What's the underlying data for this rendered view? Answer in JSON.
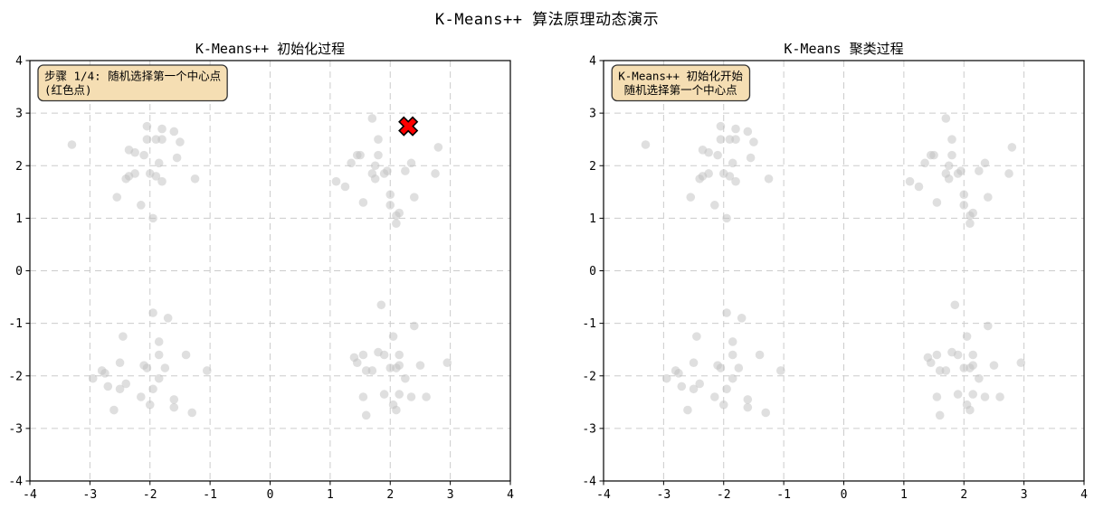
{
  "figure": {
    "title": "K-Means++ 算法原理动态演示",
    "background": "#ffffff"
  },
  "colors": {
    "sample_point": "#bfbfbf",
    "centroid_red": "#ff0000",
    "centroid_edge": "#000000",
    "annotation_bg": "#f5deb3",
    "annotation_border": "#333333",
    "grid": "#cccccc",
    "axis": "#000000",
    "text": "#000000"
  },
  "dataset": {
    "points": [
      [
        -3.3,
        2.4
      ],
      [
        -2.05,
        2.75
      ],
      [
        -1.8,
        2.7
      ],
      [
        -1.6,
        2.65
      ],
      [
        -2.05,
        2.5
      ],
      [
        -1.9,
        2.5
      ],
      [
        -1.8,
        2.5
      ],
      [
        -1.5,
        2.45
      ],
      [
        -2.35,
        2.3
      ],
      [
        -2.25,
        2.25
      ],
      [
        -2.1,
        2.2
      ],
      [
        -1.55,
        2.15
      ],
      [
        -1.85,
        2.05
      ],
      [
        -2.25,
        1.85
      ],
      [
        -2.0,
        1.85
      ],
      [
        -2.35,
        1.8
      ],
      [
        -1.9,
        1.8
      ],
      [
        -2.4,
        1.75
      ],
      [
        -1.8,
        1.7
      ],
      [
        -1.25,
        1.75
      ],
      [
        -2.55,
        1.4
      ],
      [
        -2.15,
        1.25
      ],
      [
        -1.95,
        1.0
      ],
      [
        1.7,
        2.9
      ],
      [
        1.8,
        2.5
      ],
      [
        2.8,
        2.35
      ],
      [
        1.45,
        2.2
      ],
      [
        1.5,
        2.2
      ],
      [
        1.8,
        2.2
      ],
      [
        1.35,
        2.05
      ],
      [
        1.75,
        2.0
      ],
      [
        2.35,
        2.05
      ],
      [
        1.95,
        1.9
      ],
      [
        1.9,
        1.85
      ],
      [
        2.25,
        1.9
      ],
      [
        2.75,
        1.85
      ],
      [
        1.7,
        1.85
      ],
      [
        1.75,
        1.75
      ],
      [
        1.1,
        1.7
      ],
      [
        1.25,
        1.6
      ],
      [
        2.0,
        1.45
      ],
      [
        2.4,
        1.4
      ],
      [
        1.55,
        1.3
      ],
      [
        2.0,
        1.25
      ],
      [
        2.15,
        1.1
      ],
      [
        2.1,
        1.05
      ],
      [
        2.1,
        0.9
      ],
      [
        -1.95,
        -0.8
      ],
      [
        -1.7,
        -0.9
      ],
      [
        -2.45,
        -1.25
      ],
      [
        -1.85,
        -1.35
      ],
      [
        -1.85,
        -1.6
      ],
      [
        -1.4,
        -1.6
      ],
      [
        -2.5,
        -1.75
      ],
      [
        -2.1,
        -1.8
      ],
      [
        -2.05,
        -1.85
      ],
      [
        -1.75,
        -1.85
      ],
      [
        -2.8,
        -1.9
      ],
      [
        -2.75,
        -1.95
      ],
      [
        -1.05,
        -1.9
      ],
      [
        -2.95,
        -2.05
      ],
      [
        -1.85,
        -2.05
      ],
      [
        -2.4,
        -2.15
      ],
      [
        -2.7,
        -2.2
      ],
      [
        -2.5,
        -2.25
      ],
      [
        -1.95,
        -2.25
      ],
      [
        -2.15,
        -2.4
      ],
      [
        -1.6,
        -2.45
      ],
      [
        -2.0,
        -2.55
      ],
      [
        -1.6,
        -2.6
      ],
      [
        -2.6,
        -2.65
      ],
      [
        -1.3,
        -2.7
      ],
      [
        1.85,
        -0.65
      ],
      [
        2.4,
        -1.05
      ],
      [
        2.05,
        -1.25
      ],
      [
        1.55,
        -1.6
      ],
      [
        1.8,
        -1.55
      ],
      [
        1.9,
        -1.6
      ],
      [
        2.15,
        -1.6
      ],
      [
        1.4,
        -1.65
      ],
      [
        1.45,
        -1.75
      ],
      [
        2.15,
        -1.8
      ],
      [
        2.5,
        -1.8
      ],
      [
        2.95,
        -1.75
      ],
      [
        2.0,
        -1.85
      ],
      [
        2.1,
        -1.85
      ],
      [
        1.6,
        -1.9
      ],
      [
        1.7,
        -1.9
      ],
      [
        2.25,
        -2.05
      ],
      [
        1.55,
        -2.4
      ],
      [
        1.9,
        -2.35
      ],
      [
        2.15,
        -2.35
      ],
      [
        2.35,
        -2.4
      ],
      [
        2.6,
        -2.4
      ],
      [
        2.05,
        -2.55
      ],
      [
        2.1,
        -2.65
      ],
      [
        1.6,
        -2.75
      ]
    ]
  },
  "chart_data": [
    {
      "type": "scatter",
      "title": "K-Means++ 初始化过程",
      "xlim": [
        -4,
        4
      ],
      "ylim": [
        -4,
        4
      ],
      "xticks": [
        -4,
        -3,
        -2,
        -1,
        0,
        1,
        2,
        3,
        4
      ],
      "yticks": [
        -4,
        -3,
        -2,
        -1,
        0,
        1,
        2,
        3,
        4
      ],
      "grid": {
        "style": "dashed",
        "on": true
      },
      "annotation": {
        "lines": [
          "步骤 1/4: 随机选择第一个中心点",
          "(红色点)"
        ],
        "align": "left",
        "bg": "#f5deb3",
        "border": "#333333"
      },
      "series": [
        {
          "name": "samples",
          "marker": "circle",
          "color": "#bfbfbf",
          "alpha": 0.5,
          "use_dataset": true
        },
        {
          "name": "centroid-1",
          "marker": "X",
          "color": "#ff0000",
          "edge_color": "#000000",
          "points": [
            [
              2.3,
              2.75
            ]
          ]
        }
      ]
    },
    {
      "type": "scatter",
      "title": "K-Means 聚类过程",
      "xlim": [
        -4,
        4
      ],
      "ylim": [
        -4,
        4
      ],
      "xticks": [
        -4,
        -3,
        -2,
        -1,
        0,
        1,
        2,
        3,
        4
      ],
      "yticks": [
        -4,
        -3,
        -2,
        -1,
        0,
        1,
        2,
        3,
        4
      ],
      "grid": {
        "style": "dashed",
        "on": true
      },
      "annotation": {
        "lines": [
          "K-Means++ 初始化开始",
          "随机选择第一个中心点"
        ],
        "align": "center",
        "bg": "#f5deb3",
        "border": "#333333"
      },
      "series": [
        {
          "name": "samples",
          "marker": "circle",
          "color": "#bfbfbf",
          "alpha": 0.5,
          "use_dataset": true
        }
      ]
    }
  ]
}
